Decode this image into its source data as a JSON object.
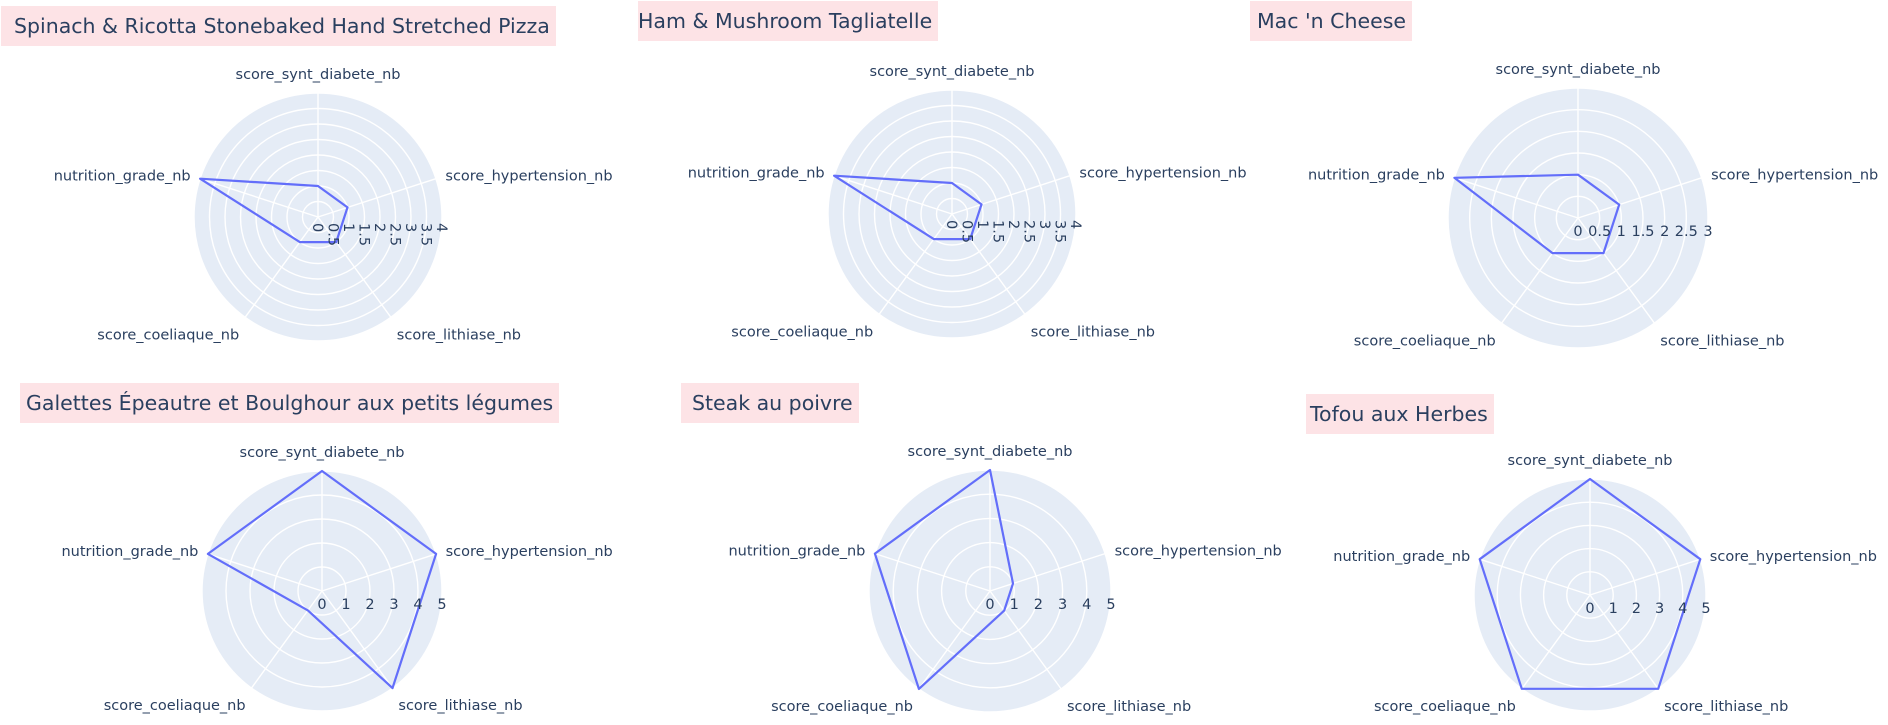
{
  "chart_data": [
    {
      "type": "radar",
      "title": "Spinach & Ricotta Stonebaked Hand Stretched Pizza",
      "axes": [
        "score_synt_diabete_nb",
        "score_hypertension_nb",
        "score_lithiase_nb",
        "score_coeliaque_nb",
        "nutrition_grade_nb"
      ],
      "values": [
        1,
        1,
        1,
        1,
        4
      ],
      "rrange": [
        0,
        4
      ],
      "ticks": [
        "0",
        "0.5",
        "1",
        "1.5",
        "2",
        "2.5",
        "3",
        "3.5",
        "4"
      ],
      "line_color": "#636efa",
      "bg_color": "#e5ecf6"
    },
    {
      "type": "radar",
      "title": "Ham & Mushroom Tagliatelle",
      "axes": [
        "score_synt_diabete_nb",
        "score_hypertension_nb",
        "score_lithiase_nb",
        "score_coeliaque_nb",
        "nutrition_grade_nb"
      ],
      "values": [
        1,
        1,
        1,
        1,
        4
      ],
      "rrange": [
        0,
        4
      ],
      "ticks": [
        "0",
        "0.5",
        "1",
        "1.5",
        "2",
        "2.5",
        "3",
        "3.5",
        "4"
      ],
      "line_color": "#636efa",
      "bg_color": "#e5ecf6"
    },
    {
      "type": "radar",
      "title": "Mac 'n Cheese",
      "axes": [
        "score_synt_diabete_nb",
        "score_hypertension_nb",
        "score_lithiase_nb",
        "score_coeliaque_nb",
        "nutrition_grade_nb"
      ],
      "values": [
        1,
        1,
        1,
        1,
        3
      ],
      "rrange": [
        0,
        3
      ],
      "ticks": [
        "0",
        "0.5",
        "1",
        "1.5",
        "2",
        "2.5",
        "3"
      ],
      "line_color": "#636efa",
      "bg_color": "#e5ecf6"
    },
    {
      "type": "radar",
      "title": "Galettes Épeautre et Boulghour aux petits légumes",
      "axes": [
        "score_synt_diabete_nb",
        "score_hypertension_nb",
        "score_lithiase_nb",
        "score_coeliaque_nb",
        "nutrition_grade_nb"
      ],
      "values": [
        5,
        5,
        5,
        1,
        5
      ],
      "rrange": [
        0,
        5
      ],
      "ticks": [
        "0",
        "1",
        "2",
        "3",
        "4",
        "5"
      ],
      "line_color": "#636efa",
      "bg_color": "#e5ecf6"
    },
    {
      "type": "radar",
      "title": "Steak au poivre",
      "axes": [
        "score_synt_diabete_nb",
        "score_hypertension_nb",
        "score_lithiase_nb",
        "score_coeliaque_nb",
        "nutrition_grade_nb"
      ],
      "values": [
        5,
        1,
        1,
        5,
        5
      ],
      "rrange": [
        0,
        5
      ],
      "ticks": [
        "0",
        "1",
        "2",
        "3",
        "4",
        "5"
      ],
      "line_color": "#636efa",
      "bg_color": "#e5ecf6"
    },
    {
      "type": "radar",
      "title": "Tofou aux Herbes",
      "axes": [
        "score_synt_diabete_nb",
        "score_hypertension_nb",
        "score_lithiase_nb",
        "score_coeliaque_nb",
        "nutrition_grade_nb"
      ],
      "values": [
        5,
        5,
        5,
        5,
        5
      ],
      "rrange": [
        0,
        5
      ],
      "ticks": [
        "0",
        "1",
        "2",
        "3",
        "4",
        "5"
      ],
      "line_color": "#636efa",
      "bg_color": "#e5ecf6"
    }
  ]
}
